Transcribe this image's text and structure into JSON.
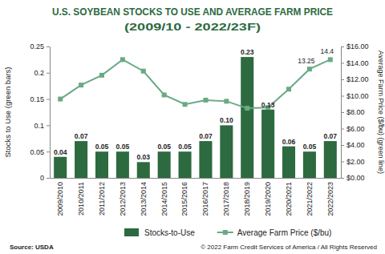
{
  "chart_data": {
    "type": "bar",
    "title": "U.S. SOYBEAN STOCKS TO USE AND AVERAGE FARM PRICE",
    "subtitle": "(2009/10 - 2022/23F)",
    "y_label": "Stocks to Use (green bars)",
    "y2_label": "Average Farm Price ($/bu) (green line)",
    "categories": [
      "2009/2010",
      "2010/2011",
      "2011/2012",
      "2012/2013",
      "2013/2014",
      "2014/2015",
      "2015/2016",
      "2016/2017",
      "2017/2018",
      "2018/2019",
      "2019/2020",
      "2020/2021",
      "2021/2022",
      "2022/2023"
    ],
    "series": [
      {
        "name": "Stocks-to-Use",
        "type": "bar",
        "color": "#2d6a3f",
        "values": [
          0.04,
          0.07,
          0.05,
          0.05,
          0.03,
          0.05,
          0.05,
          0.07,
          0.1,
          0.23,
          0.13,
          0.06,
          0.05,
          0.07
        ],
        "value_labels": [
          "0.04",
          "0.07",
          "0.05",
          "0.05",
          "0.03",
          "0.05",
          "0.05",
          "0.07",
          "0.10",
          "0.23",
          "0.13",
          "0.06",
          "0.05",
          "0.07"
        ],
        "data_labels": true
      },
      {
        "name": "Average Farm Price ($/bu)",
        "type": "line",
        "axis": "y2",
        "color": "#6aa984",
        "marker": "square",
        "values": [
          9.6,
          11.3,
          12.5,
          14.4,
          13.0,
          10.1,
          8.95,
          9.47,
          9.33,
          8.48,
          8.57,
          10.8,
          13.25,
          14.4
        ],
        "value_labels": [
          null,
          null,
          null,
          null,
          null,
          null,
          null,
          null,
          null,
          null,
          null,
          null,
          "13.25",
          "14.4"
        ],
        "data_labels": true
      }
    ],
    "ylim": [
      0,
      0.25
    ],
    "yticks": [
      0,
      0.05,
      0.1,
      0.15,
      0.2,
      0.25
    ],
    "y2lim": [
      0,
      16
    ],
    "y2ticks": [
      {
        "value": 0,
        "label": "$0.00"
      },
      {
        "value": 2,
        "label": "$2.00"
      },
      {
        "value": 4,
        "label": "$4.00"
      },
      {
        "value": 6,
        "label": "$6.00"
      },
      {
        "value": 8,
        "label": "$8.00"
      },
      {
        "value": 10,
        "label": "$10.00"
      },
      {
        "value": 12,
        "label": "$12.00"
      },
      {
        "value": 14,
        "label": "$14.00"
      },
      {
        "value": 16,
        "label": "$16.00"
      }
    ],
    "grid": false,
    "legend": "bottom",
    "source": "Source: USDA",
    "copyright": "© 2022 Farm Credit Services of America / All Rights Reserved"
  }
}
